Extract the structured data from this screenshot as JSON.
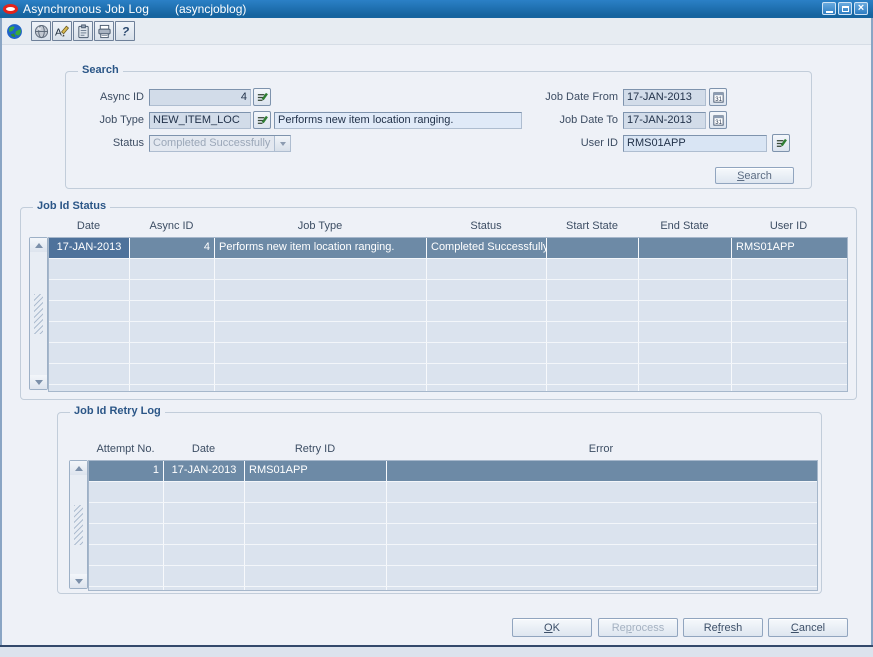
{
  "window": {
    "title": "Asynchronous Job Log",
    "code": "(asyncjoblog)",
    "controls": [
      "minimize",
      "maximize",
      "close"
    ]
  },
  "toolbar": {
    "icons": [
      {
        "name": "globe-icon"
      },
      {
        "name": "world-icon"
      },
      {
        "name": "edit-icon"
      },
      {
        "name": "clipboard-icon"
      },
      {
        "name": "printer-icon"
      },
      {
        "name": "help-icon"
      }
    ]
  },
  "search": {
    "legend": "Search",
    "fields": {
      "async_id": {
        "label": "Async ID",
        "value": "4"
      },
      "job_type": {
        "label": "Job Type",
        "value": "NEW_ITEM_LOC",
        "description": "Performs new item location ranging."
      },
      "status": {
        "label": "Status",
        "value": "Completed Successfully"
      },
      "job_date_from": {
        "label": "Job Date From",
        "value": "17-JAN-2013"
      },
      "job_date_to": {
        "label": "Job Date To",
        "value": "17-JAN-2013"
      },
      "user_id": {
        "label": "User ID",
        "value": "RMS01APP"
      }
    },
    "button": {
      "label": "Search",
      "mnemonic": "S"
    }
  },
  "job_id_status": {
    "legend": "Job Id Status",
    "columns": [
      "Date",
      "Async ID",
      "Job Type",
      "Status",
      "Start State",
      "End State",
      "User ID"
    ],
    "rows": [
      {
        "date": "17-JAN-2013",
        "async_id": "4",
        "job_type": "Performs new item location ranging.",
        "status": "Completed Successfully",
        "start_state": "",
        "end_state": "",
        "user_id": "RMS01APP"
      }
    ]
  },
  "job_id_retry_log": {
    "legend": "Job Id Retry Log",
    "columns": [
      "Attempt No.",
      "Date",
      "Retry ID",
      "Error"
    ],
    "rows": [
      {
        "attempt_no": "1",
        "date": "17-JAN-2013",
        "retry_id": "RMS01APP",
        "error": ""
      }
    ]
  },
  "footer": {
    "ok": {
      "label": "OK",
      "mnemonic": "O"
    },
    "reprocess": {
      "label": "Reprocess",
      "mnemonic": "p"
    },
    "refresh": {
      "label": "Refresh",
      "mnemonic": "f"
    },
    "cancel": {
      "label": "Cancel",
      "mnemonic": "C"
    }
  },
  "colors": {
    "titlebar": "#1c70ba",
    "oracle_red": "#e2231a",
    "selected_row": "#6d8aa6",
    "current_cell": "#4e729b",
    "row_bg": "#dbe3ee",
    "content_bg": "#eef1f7",
    "legend_text": "#2b5687"
  }
}
